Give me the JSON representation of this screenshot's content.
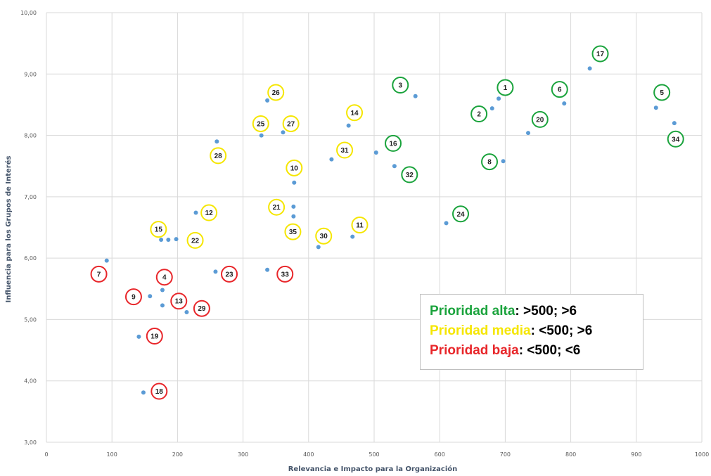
{
  "chart_data": {
    "type": "scatter",
    "title": "",
    "xlabel": "Relevancia e Impacto para la Organización",
    "ylabel": "Influencia para los Grupos de Interés",
    "xlim": [
      0,
      1000
    ],
    "ylim": [
      3,
      10
    ],
    "x_ticks": [
      "0",
      "100",
      "200",
      "300",
      "400",
      "500",
      "600",
      "700",
      "800",
      "900",
      "1000"
    ],
    "y_ticks": [
      "3,00",
      "4,00",
      "5,00",
      "6,00",
      "7,00",
      "8,00",
      "9,00",
      "10,00"
    ],
    "grid": true,
    "point_color": "#5b9bd5",
    "colors": {
      "alta": "#1aa33c",
      "media": "#f5e600",
      "baja": "#e8262a"
    },
    "points": [
      {
        "id": "1",
        "x": 690,
        "y": 8.6,
        "priority": "alta",
        "label_at": [
          700,
          8.78
        ]
      },
      {
        "id": "2",
        "x": 680,
        "y": 8.44,
        "priority": "alta",
        "label_at": [
          660,
          8.35
        ]
      },
      {
        "id": "3",
        "x": 563,
        "y": 8.64,
        "priority": "alta",
        "label_at": [
          540,
          8.82
        ]
      },
      {
        "id": "4",
        "x": 177,
        "y": 5.48,
        "priority": "baja",
        "label_at": [
          180,
          5.69
        ]
      },
      {
        "id": "5",
        "x": 930,
        "y": 8.45,
        "priority": "alta",
        "label_at": [
          939,
          8.7
        ]
      },
      {
        "id": "6",
        "x": 790,
        "y": 8.52,
        "priority": "alta",
        "label_at": [
          783,
          8.75
        ]
      },
      {
        "id": "7",
        "x": 92,
        "y": 5.96,
        "priority": "baja",
        "label_at": [
          80,
          5.74
        ]
      },
      {
        "id": "8",
        "x": 697,
        "y": 7.58,
        "priority": "alta",
        "label_at": [
          676,
          7.57
        ]
      },
      {
        "id": "9",
        "x": 158,
        "y": 5.38,
        "priority": "baja",
        "label_at": [
          133,
          5.37
        ]
      },
      {
        "id": "10",
        "x": 378,
        "y": 7.23,
        "priority": "media",
        "label_at": [
          378,
          7.47
        ]
      },
      {
        "id": "11",
        "x": 467,
        "y": 6.35,
        "priority": "media",
        "label_at": [
          478,
          6.54
        ]
      },
      {
        "id": "12",
        "x": 228,
        "y": 6.74,
        "priority": "media",
        "label_at": [
          248,
          6.74
        ]
      },
      {
        "id": "13",
        "x": 177,
        "y": 5.23,
        "priority": "baja",
        "label_at": [
          202,
          5.3
        ]
      },
      {
        "id": "14",
        "x": 461,
        "y": 8.16,
        "priority": "media",
        "label_at": [
          470,
          8.37
        ]
      },
      {
        "id": "15",
        "x": 186,
        "y": 6.3,
        "priority": "media",
        "label_at": [
          171,
          6.47
        ]
      },
      {
        "id": "16",
        "x": 503,
        "y": 7.72,
        "priority": "alta",
        "label_at": [
          529,
          7.87
        ]
      },
      {
        "id": "17",
        "x": 829,
        "y": 9.09,
        "priority": "alta",
        "label_at": [
          845,
          9.33
        ]
      },
      {
        "id": "18",
        "x": 148,
        "y": 3.81,
        "priority": "baja",
        "label_at": [
          172,
          3.83
        ]
      },
      {
        "id": "19",
        "x": 141,
        "y": 4.72,
        "priority": "baja",
        "label_at": [
          165,
          4.73
        ]
      },
      {
        "id": "20",
        "x": 735,
        "y": 8.04,
        "priority": "alta",
        "label_at": [
          753,
          8.26
        ]
      },
      {
        "id": "21",
        "x": 377,
        "y": 6.84,
        "priority": "media",
        "label_at": [
          351,
          6.83
        ]
      },
      {
        "id": "22",
        "x": 198,
        "y": 6.31,
        "priority": "media",
        "label_at": [
          227,
          6.29
        ]
      },
      {
        "id": "23",
        "x": 258,
        "y": 5.78,
        "priority": "baja",
        "label_at": [
          279,
          5.74
        ]
      },
      {
        "id": "24",
        "x": 610,
        "y": 6.57,
        "priority": "alta",
        "label_at": [
          632,
          6.72
        ]
      },
      {
        "id": "25",
        "x": 328,
        "y": 8.0,
        "priority": "media",
        "label_at": [
          327,
          8.19
        ]
      },
      {
        "id": "26",
        "x": 337,
        "y": 8.57,
        "priority": "media",
        "label_at": [
          350,
          8.7
        ]
      },
      {
        "id": "27",
        "x": 361,
        "y": 8.05,
        "priority": "media",
        "label_at": [
          373,
          8.19
        ]
      },
      {
        "id": "28",
        "x": 260,
        "y": 7.9,
        "priority": "media",
        "label_at": [
          262,
          7.67
        ]
      },
      {
        "id": "29",
        "x": 214,
        "y": 5.12,
        "priority": "baja",
        "label_at": [
          237,
          5.18
        ]
      },
      {
        "id": "30",
        "x": 415,
        "y": 6.18,
        "priority": "media",
        "label_at": [
          423,
          6.36
        ]
      },
      {
        "id": "31",
        "x": 435,
        "y": 7.61,
        "priority": "media",
        "label_at": [
          455,
          7.76
        ]
      },
      {
        "id": "32",
        "x": 531,
        "y": 7.5,
        "priority": "alta",
        "label_at": [
          554,
          7.36
        ]
      },
      {
        "id": "33",
        "x": 337,
        "y": 5.81,
        "priority": "baja",
        "label_at": [
          364,
          5.74
        ]
      },
      {
        "id": "34",
        "x": 958,
        "y": 8.2,
        "priority": "alta",
        "label_at": [
          960,
          7.94
        ]
      },
      {
        "id": "35",
        "x": 377,
        "y": 6.68,
        "priority": "media",
        "label_at": [
          376,
          6.43
        ]
      },
      {
        "id": "",
        "x": 175,
        "y": 6.3,
        "priority": "none"
      },
      {
        "id": "",
        "x": 377,
        "y": 6.34,
        "priority": "none"
      }
    ]
  },
  "legend": [
    {
      "label": "Prioridad alta",
      "rule": ": >500; >6",
      "color": "#1aa33c"
    },
    {
      "label": "Prioridad media",
      "rule": ": <500; >6",
      "color": "#f5e600"
    },
    {
      "label": "Prioridad baja",
      "rule": ": <500; <6",
      "color": "#e8262a"
    }
  ]
}
